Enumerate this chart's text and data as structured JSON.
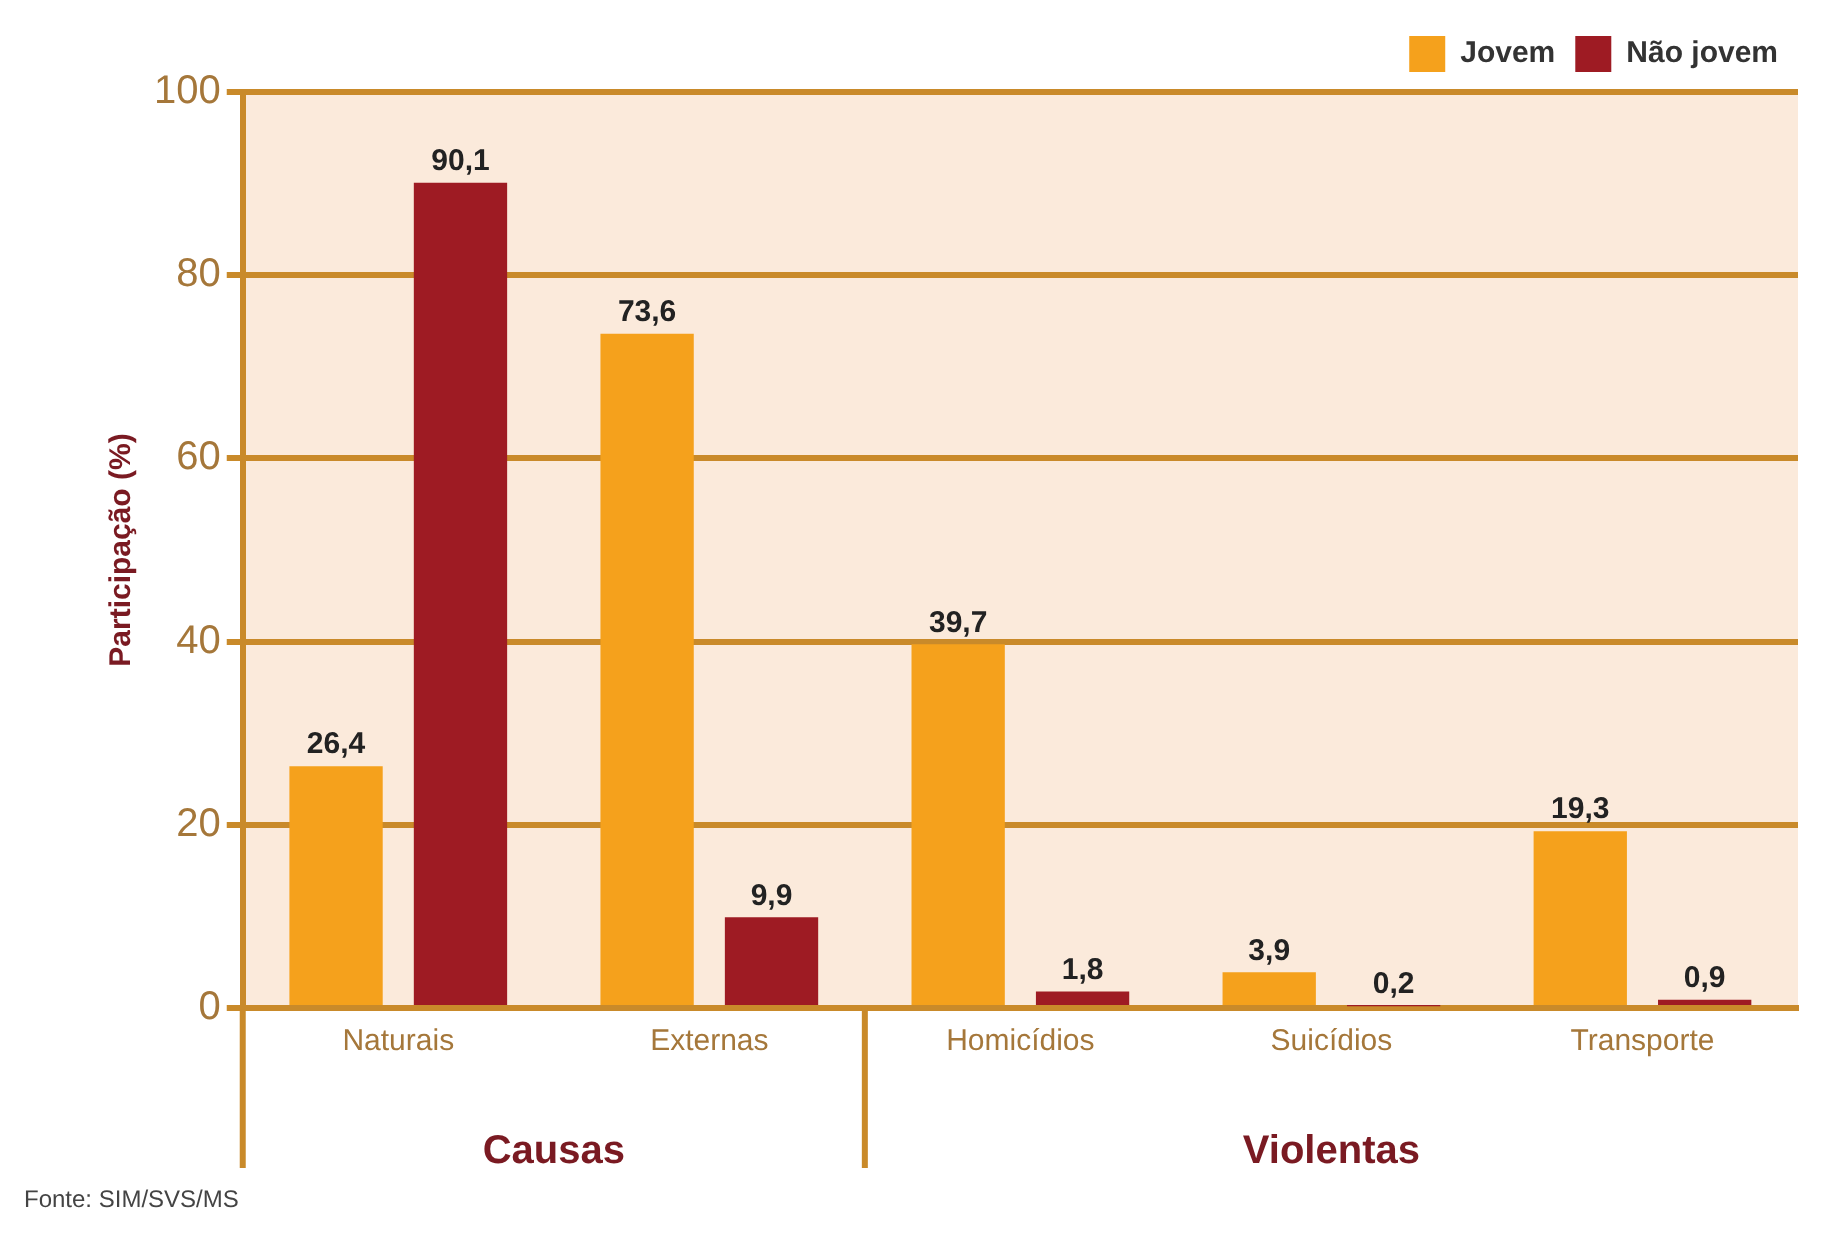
{
  "chart_data": {
    "type": "bar",
    "ylabel": "Participação (%)",
    "categories": [
      "Naturais",
      "Externas",
      "Homicídios",
      "Suicídios",
      "Transporte"
    ],
    "series": [
      {
        "name": "Jovem",
        "color": "#f5a11c",
        "values": [
          26.4,
          73.6,
          39.7,
          3.9,
          19.3
        ],
        "value_labels": [
          "26,4",
          "73,6",
          "39,7",
          "3,9",
          "19,3"
        ]
      },
      {
        "name": "Não jovem",
        "color": "#9e1b23",
        "values": [
          90.1,
          9.9,
          1.8,
          0.2,
          0.9
        ],
        "value_labels": [
          "90,1",
          "9,9",
          "1,8",
          "0,2",
          "0,9"
        ]
      }
    ],
    "ylim": [
      0,
      100
    ],
    "yticks": [
      0,
      20,
      40,
      60,
      80,
      100
    ],
    "grid": "y",
    "legend": "top right",
    "annotations": [
      "Causas",
      "Violentas",
      "Fonte: SIM/SVS/MS"
    ]
  }
}
